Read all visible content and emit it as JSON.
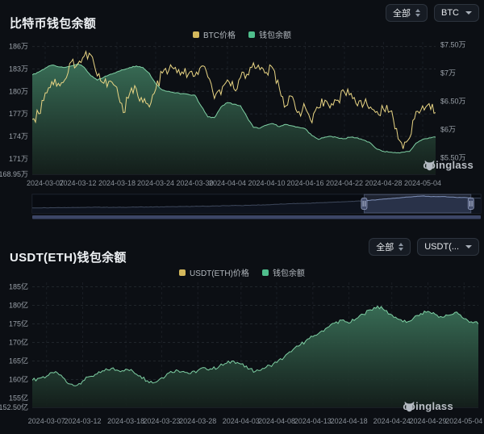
{
  "page": {
    "background": "#0c0f14"
  },
  "panel_btc": {
    "title": "比特币钱包余额",
    "controls": {
      "range_label": "全部",
      "symbol_label": "BTC"
    },
    "legend": [
      {
        "label": "BTC价格",
        "color": "#d4b85c"
      },
      {
        "label": "钱包余额",
        "color": "#4fbe8c"
      }
    ],
    "watermark": "coinglass",
    "chart_data": {
      "type": "area+line",
      "title": "比特币钱包余额",
      "x_ticks": [
        {
          "label": "2024-03-07",
          "pos": 0.032
        },
        {
          "label": "2024-03-12",
          "pos": 0.113
        },
        {
          "label": "2024-03-18",
          "pos": 0.21
        },
        {
          "label": "2024-03-24",
          "pos": 0.306
        },
        {
          "label": "2024-03-30",
          "pos": 0.403
        },
        {
          "label": "2024-04-04",
          "pos": 0.484
        },
        {
          "label": "2024-04-10",
          "pos": 0.581
        },
        {
          "label": "2024-04-16",
          "pos": 0.677
        },
        {
          "label": "2024-04-22",
          "pos": 0.774
        },
        {
          "label": "2024-04-28",
          "pos": 0.871
        },
        {
          "label": "2024-05-04",
          "pos": 0.968
        }
      ],
      "left_axis": {
        "unit": "万",
        "min": 168.95,
        "max": 186.6,
        "ticks": [
          {
            "label": "186万",
            "v": 186
          },
          {
            "label": "183万",
            "v": 183
          },
          {
            "label": "180万",
            "v": 180
          },
          {
            "label": "177万",
            "v": 177
          },
          {
            "label": "174万",
            "v": 174
          },
          {
            "label": "171万",
            "v": 171
          },
          {
            "label": "168.95万",
            "v": 168.95
          }
        ]
      },
      "right_axis": {
        "min": 5.21,
        "max": 7.55,
        "ticks": [
          {
            "label": "$7.50万",
            "v": 7.5
          },
          {
            "label": "$7万",
            "v": 7.0
          },
          {
            "label": "$6.50万",
            "v": 6.5
          },
          {
            "label": "$6万",
            "v": 6.0
          },
          {
            "label": "$5.50万",
            "v": 5.5
          }
        ]
      },
      "area_gradient": [
        "#3a7058",
        "#141f1b"
      ],
      "series": [
        {
          "name": "钱包余额",
          "axis": "left",
          "type": "area",
          "color": "#7fd0a4",
          "noise": 0.07,
          "values": [
            182.2,
            182.6,
            183.1,
            183.5,
            183.3,
            183.2,
            183.4,
            183.7,
            183.2,
            182.1,
            181.5,
            181.9,
            182.3,
            182.6,
            182.9,
            183.2,
            183.4,
            183.2,
            182.4,
            181.0,
            180.2,
            180.0,
            179.8,
            179.7,
            179.6,
            179.5,
            178.0,
            176.6,
            176.5,
            177.9,
            178.5,
            178.3,
            178.1,
            176.6,
            175.2,
            175.1,
            175.5,
            175.7,
            175.3,
            175.6,
            175.4,
            175.2,
            175.0,
            174.1,
            173.6,
            173.9,
            174.0,
            173.8,
            173.7,
            173.9,
            173.8,
            173.5,
            173.1,
            172.3,
            172.0,
            171.9,
            171.8,
            171.9,
            172.0,
            173.1,
            173.6,
            173.8,
            173.9
          ]
        },
        {
          "name": "BTC价格",
          "axis": "right",
          "type": "line",
          "color": "#e9d584",
          "noise": 0.1,
          "values": [
            6.18,
            6.28,
            6.65,
            6.85,
            6.82,
            6.88,
            7.2,
            7.16,
            7.3,
            7.32,
            6.95,
            6.82,
            6.86,
            6.75,
            6.3,
            6.65,
            6.72,
            6.48,
            6.4,
            6.72,
            7.0,
            7.05,
            7.1,
            7.02,
            6.98,
            6.95,
            7.12,
            6.93,
            6.55,
            6.62,
            6.88,
            6.72,
            6.92,
            6.98,
            7.18,
            7.06,
            7.01,
            7.08,
            6.72,
            6.42,
            6.58,
            6.32,
            6.38,
            6.12,
            6.38,
            6.52,
            6.46,
            6.52,
            6.66,
            6.64,
            6.42,
            6.46,
            6.4,
            6.32,
            6.36,
            6.32,
            6.02,
            5.66,
            5.85,
            6.32,
            6.42,
            6.46,
            6.3
          ]
        }
      ]
    },
    "navigator": {
      "selection": [
        0.74,
        0.978
      ],
      "colors": {
        "line": "#8193b8",
        "fill": "#1a2132",
        "selection_fill": "rgba(124,146,200,0.16)",
        "handle": "#9aa6c6",
        "scrollbar": "#3c4566"
      },
      "values": [
        0.3,
        0.3,
        0.31,
        0.31,
        0.32,
        0.32,
        0.32,
        0.33,
        0.33,
        0.33,
        0.34,
        0.34,
        0.33,
        0.33,
        0.34,
        0.34,
        0.35,
        0.35,
        0.35,
        0.36,
        0.36,
        0.37,
        0.37,
        0.38,
        0.38,
        0.39,
        0.4,
        0.4,
        0.41,
        0.42,
        0.43,
        0.44,
        0.44,
        0.45,
        0.46,
        0.47,
        0.48,
        0.5,
        0.52,
        0.53,
        0.55,
        0.56,
        0.57,
        0.58,
        0.6,
        0.62,
        0.63,
        0.65,
        0.66,
        0.68,
        0.7,
        0.72,
        0.75,
        0.78,
        0.82,
        0.85,
        0.88,
        0.92,
        0.95,
        0.97,
        1.0,
        0.98,
        0.96,
        0.97,
        0.95,
        0.93,
        0.91,
        0.9,
        0.88,
        0.87
      ]
    }
  },
  "panel_usdt": {
    "title": "USDT(ETH)钱包余额",
    "controls": {
      "range_label": "全部",
      "symbol_label": "USDT(..."
    },
    "legend": [
      {
        "label": "USDT(ETH)价格",
        "color": "#d4b85c"
      },
      {
        "label": "钱包余额",
        "color": "#4fbe8c"
      }
    ],
    "watermark": "coinglass",
    "chart_data": {
      "type": "area",
      "title": "USDT(ETH)钱包余额",
      "x_ticks": [
        {
          "label": "2024-03-07",
          "pos": 0.032
        },
        {
          "label": "2024-03-12",
          "pos": 0.113
        },
        {
          "label": "2024-03-18",
          "pos": 0.21
        },
        {
          "label": "2024-03-23",
          "pos": 0.29
        },
        {
          "label": "2024-03-28",
          "pos": 0.371
        },
        {
          "label": "2024-04-03",
          "pos": 0.468
        },
        {
          "label": "2024-04-08",
          "pos": 0.548
        },
        {
          "label": "2024-04-13",
          "pos": 0.629
        },
        {
          "label": "2024-04-18",
          "pos": 0.71
        },
        {
          "label": "2024-04-24",
          "pos": 0.806
        },
        {
          "label": "2024-04-29",
          "pos": 0.887
        },
        {
          "label": "2024-05-04",
          "pos": 0.968
        }
      ],
      "left_axis": {
        "unit": "亿",
        "min": 152.5,
        "max": 186.2,
        "ticks": [
          {
            "label": "185亿",
            "v": 185
          },
          {
            "label": "180亿",
            "v": 180
          },
          {
            "label": "175亿",
            "v": 175
          },
          {
            "label": "170亿",
            "v": 170
          },
          {
            "label": "165亿",
            "v": 165
          },
          {
            "label": "160亿",
            "v": 160
          },
          {
            "label": "155亿",
            "v": 155
          },
          {
            "label": "152.50亿",
            "v": 152.5
          }
        ]
      },
      "right_axis": {
        "min": 0,
        "max": 0,
        "ticks": []
      },
      "area_gradient": [
        "#3a7058",
        "#141f1b"
      ],
      "series": [
        {
          "name": "钱包余额",
          "axis": "left",
          "type": "area",
          "color": "#7fd0a4",
          "noise": 0.5,
          "values": [
            159.8,
            160.4,
            160.9,
            161.8,
            161.2,
            158.9,
            158.3,
            159.6,
            160.8,
            161.5,
            162.3,
            163.0,
            162.4,
            162.8,
            162.2,
            161.0,
            159.7,
            159.2,
            160.5,
            161.8,
            162.6,
            162.2,
            161.6,
            162.4,
            163.2,
            162.8,
            163.6,
            164.4,
            165.0,
            164.2,
            162.8,
            162.2,
            163.0,
            163.8,
            164.6,
            166.0,
            167.5,
            169.0,
            170.4,
            171.6,
            172.8,
            174.0,
            175.2,
            176.0,
            175.2,
            176.4,
            177.6,
            178.8,
            179.8,
            178.6,
            177.4,
            176.2,
            175.4,
            176.6,
            177.8,
            178.4,
            177.6,
            176.8,
            177.4,
            178.2,
            176.4,
            175.6,
            175.0
          ]
        }
      ]
    }
  }
}
